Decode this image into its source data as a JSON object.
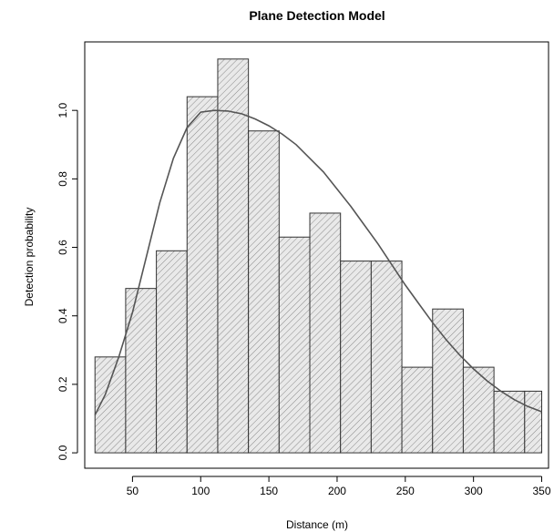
{
  "chart_data": {
    "type": "bar",
    "title": "Plane Detection Model",
    "xlabel": "Distance (m)",
    "ylabel": "Detection probability",
    "xlim": [
      15,
      355
    ],
    "ylim": [
      -0.045,
      1.2
    ],
    "x_ticks": [
      50,
      100,
      150,
      200,
      250,
      300,
      350
    ],
    "y_ticks": [
      0.0,
      0.2,
      0.4,
      0.6,
      0.8,
      1.0
    ],
    "y_tick_labels": [
      "0.0",
      "0.2",
      "0.4",
      "0.6",
      "0.8",
      "1.0"
    ],
    "grid": false,
    "bins": [
      {
        "x0": 22.5,
        "x1": 45,
        "value": 0.28
      },
      {
        "x0": 45,
        "x1": 67.5,
        "value": 0.48
      },
      {
        "x0": 67.5,
        "x1": 90,
        "value": 0.59
      },
      {
        "x0": 90,
        "x1": 112.5,
        "value": 1.04
      },
      {
        "x0": 112.5,
        "x1": 135,
        "value": 1.15
      },
      {
        "x0": 135,
        "x1": 157.5,
        "value": 0.94
      },
      {
        "x0": 157.5,
        "x1": 180,
        "value": 0.63
      },
      {
        "x0": 180,
        "x1": 202.5,
        "value": 0.7
      },
      {
        "x0": 202.5,
        "x1": 225,
        "value": 0.56
      },
      {
        "x0": 225,
        "x1": 247.5,
        "value": 0.56
      },
      {
        "x0": 247.5,
        "x1": 270,
        "value": 0.25
      },
      {
        "x0": 270,
        "x1": 292.5,
        "value": 0.42
      },
      {
        "x0": 292.5,
        "x1": 315,
        "value": 0.25
      },
      {
        "x0": 315,
        "x1": 337.5,
        "value": 0.18
      },
      {
        "x0": 337.5,
        "x1": 350,
        "value": 0.18
      }
    ],
    "fitted_curve": {
      "x": [
        22.5,
        30,
        40,
        50,
        60,
        70,
        80,
        90,
        100,
        110,
        120,
        130,
        140,
        150,
        160,
        170,
        180,
        190,
        200,
        210,
        220,
        230,
        240,
        250,
        260,
        270,
        280,
        290,
        300,
        310,
        320,
        330,
        340,
        350
      ],
      "y": [
        0.11,
        0.17,
        0.28,
        0.41,
        0.57,
        0.73,
        0.86,
        0.95,
        0.995,
        1.0,
        0.998,
        0.99,
        0.975,
        0.955,
        0.93,
        0.9,
        0.86,
        0.82,
        0.77,
        0.72,
        0.665,
        0.61,
        0.55,
        0.49,
        0.435,
        0.38,
        0.33,
        0.285,
        0.245,
        0.21,
        0.18,
        0.155,
        0.135,
        0.12
      ]
    }
  }
}
